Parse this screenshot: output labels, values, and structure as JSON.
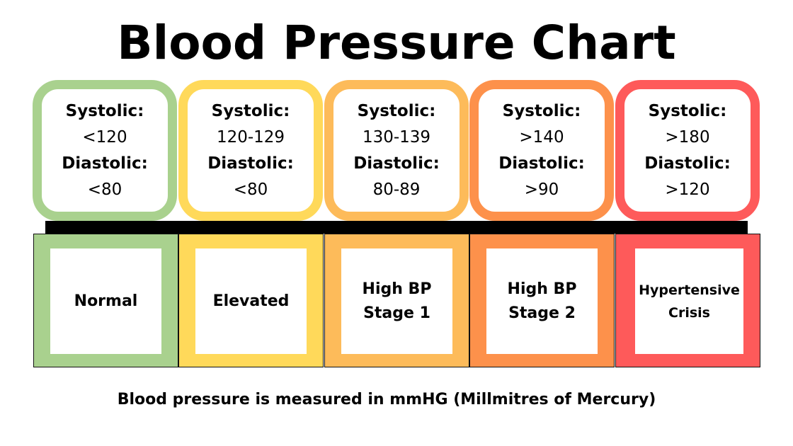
{
  "title": "Blood Pressure Chart",
  "footer": "Blood pressure is measured in mmHG (Millmitres of Mercury)",
  "categories": [
    {
      "name": "Normal",
      "color": "#a9d18e",
      "systolic_label": "Systolic:",
      "systolic": "<120",
      "diastolic_label": "Diastolic:",
      "diastolic": "<80"
    },
    {
      "name": "Elevated",
      "color": "#ffd95a",
      "systolic_label": "Systolic:",
      "systolic": "120-129",
      "diastolic_label": "Diastolic:",
      "diastolic": "<80"
    },
    {
      "name": "High BP\nStage 1",
      "color": "#fdbb5a",
      "systolic_label": "Systolic:",
      "systolic": "130-139",
      "diastolic_label": "Diastolic:",
      "diastolic": "80-89"
    },
    {
      "name": "High BP\nStage 2",
      "color": "#fd914b",
      "systolic_label": "Systolic:",
      "systolic": ">140",
      "diastolic_label": "Diastolic:",
      "diastolic": ">90"
    },
    {
      "name": "Hypertensive\nCrisis",
      "color": "#fe5a5a",
      "systolic_label": "Systolic:",
      "systolic": ">180",
      "diastolic_label": "Diastolic:",
      "diastolic": ">120"
    }
  ]
}
